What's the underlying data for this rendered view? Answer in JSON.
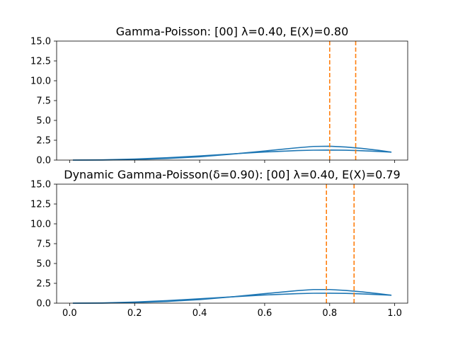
{
  "chart_data": [
    {
      "type": "line",
      "title": "Gamma-Poisson: [00] λ=0.40, E(X)=0.80",
      "xlim": [
        -0.04,
        1.04
      ],
      "ylim": [
        0,
        15
      ],
      "xticks": [
        0.0,
        0.2,
        0.4,
        0.6,
        0.8,
        1.0
      ],
      "xtick_labels": [],
      "yticks": [
        0.0,
        2.5,
        5.0,
        7.5,
        10.0,
        12.5,
        15.0
      ],
      "ytick_labels": [
        "0.0",
        "2.5",
        "5.0",
        "7.5",
        "10.0",
        "12.5",
        "15.0"
      ],
      "series": [
        {
          "color": "#1f77b4",
          "x": [
            0.01,
            0.1,
            0.2,
            0.3,
            0.4,
            0.5,
            0.6,
            0.7,
            0.75,
            0.8,
            0.85,
            0.9,
            0.95,
            0.99
          ],
          "y": [
            0.0,
            0.01,
            0.07,
            0.2,
            0.42,
            0.75,
            1.15,
            1.55,
            1.72,
            1.75,
            1.65,
            1.47,
            1.23,
            1.0
          ]
        },
        {
          "color": "#1f77b4",
          "x": [
            0.01,
            0.1,
            0.2,
            0.3,
            0.4,
            0.5,
            0.6,
            0.7,
            0.75,
            0.8,
            0.85,
            0.9,
            0.95,
            0.99
          ],
          "y": [
            0.0,
            0.03,
            0.13,
            0.3,
            0.52,
            0.78,
            1.02,
            1.2,
            1.25,
            1.27,
            1.24,
            1.18,
            1.09,
            1.0
          ]
        }
      ],
      "vlines": [
        {
          "x": 0.8,
          "color": "#ff7f0e",
          "style": "dashed"
        },
        {
          "x": 0.88,
          "color": "#ff7f0e",
          "style": "dashed"
        }
      ],
      "grid": false
    },
    {
      "type": "line",
      "title": "Dynamic Gamma-Poisson(δ=0.90): [00] λ=0.40, E(X)=0.79",
      "xlim": [
        -0.04,
        1.04
      ],
      "ylim": [
        0,
        15
      ],
      "xticks": [
        0.0,
        0.2,
        0.4,
        0.6,
        0.8,
        1.0
      ],
      "xtick_labels": [
        "0.0",
        "0.2",
        "0.4",
        "0.6",
        "0.8",
        "1.0"
      ],
      "yticks": [
        0.0,
        2.5,
        5.0,
        7.5,
        10.0,
        12.5,
        15.0
      ],
      "ytick_labels": [
        "0.0",
        "2.5",
        "5.0",
        "7.5",
        "10.0",
        "12.5",
        "15.0"
      ],
      "series": [
        {
          "color": "#1f77b4",
          "x": [
            0.01,
            0.1,
            0.2,
            0.3,
            0.4,
            0.5,
            0.6,
            0.7,
            0.75,
            0.8,
            0.85,
            0.9,
            0.95,
            0.99
          ],
          "y": [
            0.0,
            0.01,
            0.08,
            0.22,
            0.45,
            0.8,
            1.2,
            1.58,
            1.72,
            1.72,
            1.6,
            1.42,
            1.2,
            1.0
          ]
        },
        {
          "color": "#1f77b4",
          "x": [
            0.01,
            0.1,
            0.2,
            0.3,
            0.4,
            0.5,
            0.6,
            0.7,
            0.75,
            0.8,
            0.85,
            0.9,
            0.95,
            0.99
          ],
          "y": [
            0.0,
            0.03,
            0.14,
            0.32,
            0.55,
            0.8,
            1.03,
            1.2,
            1.25,
            1.26,
            1.23,
            1.17,
            1.08,
            1.0
          ]
        }
      ],
      "vlines": [
        {
          "x": 0.79,
          "color": "#ff7f0e",
          "style": "dashed"
        },
        {
          "x": 0.875,
          "color": "#ff7f0e",
          "style": "dashed"
        }
      ],
      "grid": false
    }
  ]
}
